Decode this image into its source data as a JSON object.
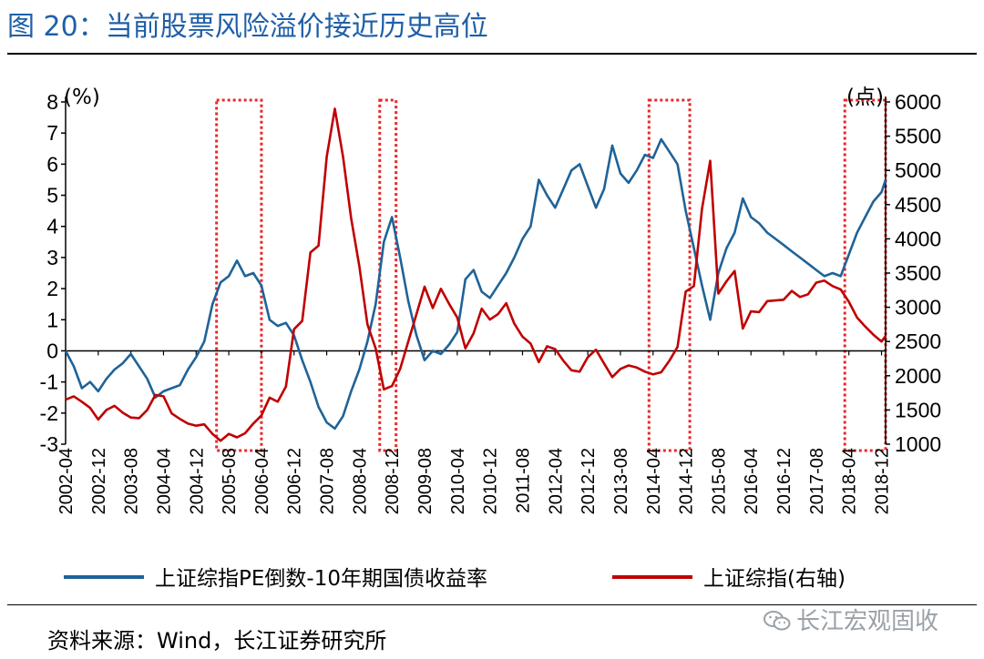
{
  "figure": {
    "title": "图 20：当前股票风险溢价接近历史高位",
    "source": "资料来源：Wind，长江证券研究所",
    "watermark": "长江宏观固收",
    "watermark_icon": "wechat-icon"
  },
  "chart_data": {
    "type": "line",
    "left_unit": "(%)",
    "right_unit": "(点)",
    "left_ylim": [
      -3,
      8
    ],
    "right_ylim": [
      1000,
      6000
    ],
    "left_ticks": [
      "8",
      "7",
      "6",
      "5",
      "4",
      "3",
      "2",
      "1",
      "0",
      "-1",
      "-2",
      "-3"
    ],
    "right_ticks": [
      "6000",
      "5500",
      "5000",
      "4500",
      "4000",
      "3500",
      "3000",
      "2500",
      "2000",
      "1500",
      "1000"
    ],
    "x_ticks": [
      "2002-04",
      "2002-12",
      "2003-08",
      "2004-04",
      "2004-12",
      "2005-08",
      "2006-04",
      "2006-12",
      "2007-08",
      "2008-04",
      "2008-12",
      "2009-08",
      "2010-04",
      "2010-12",
      "2011-08",
      "2012-04",
      "2012-12",
      "2013-08",
      "2014-04",
      "2014-12",
      "2015-08",
      "2016-04",
      "2016-12",
      "2017-08",
      "2018-04",
      "2018-12"
    ],
    "x_range": [
      "2002-04",
      "2019-01"
    ],
    "grid": false,
    "legend_position": "bottom",
    "colors": {
      "erp": "#1f6398",
      "index": "#c00000",
      "box": "#e8282b"
    },
    "series": [
      {
        "name": "上证综指PE倒数-10年期国债收益率",
        "axis": "left",
        "points": [
          [
            "2002-04",
            0.0
          ],
          [
            "2002-06",
            -0.5
          ],
          [
            "2002-08",
            -1.2
          ],
          [
            "2002-10",
            -1.0
          ],
          [
            "2002-12",
            -1.3
          ],
          [
            "2003-02",
            -0.9
          ],
          [
            "2003-04",
            -0.6
          ],
          [
            "2003-06",
            -0.4
          ],
          [
            "2003-08",
            -0.1
          ],
          [
            "2003-10",
            -0.5
          ],
          [
            "2003-12",
            -0.9
          ],
          [
            "2004-02",
            -1.5
          ],
          [
            "2004-04",
            -1.3
          ],
          [
            "2004-06",
            -1.2
          ],
          [
            "2004-08",
            -1.1
          ],
          [
            "2004-10",
            -0.6
          ],
          [
            "2004-12",
            -0.2
          ],
          [
            "2005-02",
            0.3
          ],
          [
            "2005-04",
            1.5
          ],
          [
            "2005-06",
            2.2
          ],
          [
            "2005-08",
            2.4
          ],
          [
            "2005-10",
            2.9
          ],
          [
            "2005-12",
            2.4
          ],
          [
            "2006-02",
            2.5
          ],
          [
            "2006-04",
            2.1
          ],
          [
            "2006-06",
            1.0
          ],
          [
            "2006-08",
            0.8
          ],
          [
            "2006-10",
            0.9
          ],
          [
            "2006-12",
            0.5
          ],
          [
            "2007-02",
            -0.3
          ],
          [
            "2007-04",
            -1.0
          ],
          [
            "2007-06",
            -1.8
          ],
          [
            "2007-08",
            -2.3
          ],
          [
            "2007-10",
            -2.5
          ],
          [
            "2007-12",
            -2.1
          ],
          [
            "2008-02",
            -1.3
          ],
          [
            "2008-04",
            -0.6
          ],
          [
            "2008-06",
            0.3
          ],
          [
            "2008-08",
            1.5
          ],
          [
            "2008-10",
            3.5
          ],
          [
            "2008-12",
            4.3
          ],
          [
            "2009-02",
            3.0
          ],
          [
            "2009-04",
            1.6
          ],
          [
            "2009-06",
            0.5
          ],
          [
            "2009-08",
            -0.3
          ],
          [
            "2009-10",
            0.0
          ],
          [
            "2009-12",
            -0.1
          ],
          [
            "2010-02",
            0.2
          ],
          [
            "2010-04",
            0.6
          ],
          [
            "2010-06",
            2.3
          ],
          [
            "2010-08",
            2.6
          ],
          [
            "2010-10",
            1.9
          ],
          [
            "2010-12",
            1.7
          ],
          [
            "2011-02",
            2.1
          ],
          [
            "2011-04",
            2.5
          ],
          [
            "2011-06",
            3.0
          ],
          [
            "2011-08",
            3.6
          ],
          [
            "2011-10",
            4.0
          ],
          [
            "2011-12",
            5.5
          ],
          [
            "2012-02",
            5.0
          ],
          [
            "2012-04",
            4.6
          ],
          [
            "2012-06",
            5.2
          ],
          [
            "2012-08",
            5.8
          ],
          [
            "2012-10",
            6.0
          ],
          [
            "2012-12",
            5.3
          ],
          [
            "2013-02",
            4.6
          ],
          [
            "2013-04",
            5.2
          ],
          [
            "2013-06",
            6.6
          ],
          [
            "2013-08",
            5.7
          ],
          [
            "2013-10",
            5.4
          ],
          [
            "2013-12",
            5.8
          ],
          [
            "2014-02",
            6.3
          ],
          [
            "2014-04",
            6.2
          ],
          [
            "2014-06",
            6.8
          ],
          [
            "2014-08",
            6.4
          ],
          [
            "2014-10",
            6.0
          ],
          [
            "2014-12",
            4.5
          ],
          [
            "2015-02",
            3.3
          ],
          [
            "2015-04",
            2.1
          ],
          [
            "2015-06",
            1.0
          ],
          [
            "2015-08",
            2.5
          ],
          [
            "2015-10",
            3.3
          ],
          [
            "2015-12",
            3.8
          ],
          [
            "2016-02",
            4.9
          ],
          [
            "2016-04",
            4.3
          ],
          [
            "2016-06",
            4.1
          ],
          [
            "2016-08",
            3.8
          ],
          [
            "2016-10",
            3.6
          ],
          [
            "2016-12",
            3.4
          ],
          [
            "2017-02",
            3.2
          ],
          [
            "2017-04",
            3.0
          ],
          [
            "2017-06",
            2.8
          ],
          [
            "2017-08",
            2.6
          ],
          [
            "2017-10",
            2.4
          ],
          [
            "2017-12",
            2.5
          ],
          [
            "2018-02",
            2.4
          ],
          [
            "2018-04",
            3.1
          ],
          [
            "2018-06",
            3.8
          ],
          [
            "2018-08",
            4.3
          ],
          [
            "2018-10",
            4.8
          ],
          [
            "2018-12",
            5.1
          ],
          [
            "2019-01",
            5.5
          ]
        ]
      },
      {
        "name": "上证综指(右轴)",
        "axis": "right",
        "points": [
          [
            "2002-04",
            1650
          ],
          [
            "2002-06",
            1700
          ],
          [
            "2002-08",
            1620
          ],
          [
            "2002-10",
            1530
          ],
          [
            "2002-12",
            1360
          ],
          [
            "2003-02",
            1500
          ],
          [
            "2003-04",
            1560
          ],
          [
            "2003-06",
            1460
          ],
          [
            "2003-08",
            1390
          ],
          [
            "2003-10",
            1380
          ],
          [
            "2003-12",
            1500
          ],
          [
            "2004-02",
            1720
          ],
          [
            "2004-04",
            1700
          ],
          [
            "2004-06",
            1450
          ],
          [
            "2004-08",
            1370
          ],
          [
            "2004-10",
            1300
          ],
          [
            "2004-12",
            1270
          ],
          [
            "2005-02",
            1290
          ],
          [
            "2005-04",
            1150
          ],
          [
            "2005-06",
            1050
          ],
          [
            "2005-08",
            1150
          ],
          [
            "2005-10",
            1100
          ],
          [
            "2005-12",
            1160
          ],
          [
            "2006-02",
            1300
          ],
          [
            "2006-04",
            1420
          ],
          [
            "2006-06",
            1680
          ],
          [
            "2006-08",
            1620
          ],
          [
            "2006-10",
            1840
          ],
          [
            "2006-12",
            2680
          ],
          [
            "2007-02",
            2800
          ],
          [
            "2007-04",
            3800
          ],
          [
            "2007-06",
            3900
          ],
          [
            "2007-08",
            5200
          ],
          [
            "2007-10",
            5900
          ],
          [
            "2007-12",
            5200
          ],
          [
            "2008-02",
            4300
          ],
          [
            "2008-04",
            3600
          ],
          [
            "2008-06",
            2750
          ],
          [
            "2008-08",
            2400
          ],
          [
            "2008-10",
            1800
          ],
          [
            "2008-12",
            1850
          ],
          [
            "2009-02",
            2100
          ],
          [
            "2009-04",
            2500
          ],
          [
            "2009-06",
            2900
          ],
          [
            "2009-08",
            3300
          ],
          [
            "2009-10",
            2990
          ],
          [
            "2009-12",
            3270
          ],
          [
            "2010-02",
            3050
          ],
          [
            "2010-04",
            2850
          ],
          [
            "2010-06",
            2400
          ],
          [
            "2010-08",
            2620
          ],
          [
            "2010-10",
            2980
          ],
          [
            "2010-12",
            2820
          ],
          [
            "2011-02",
            2900
          ],
          [
            "2011-04",
            3060
          ],
          [
            "2011-06",
            2760
          ],
          [
            "2011-08",
            2570
          ],
          [
            "2011-10",
            2470
          ],
          [
            "2011-12",
            2200
          ],
          [
            "2012-02",
            2430
          ],
          [
            "2012-04",
            2390
          ],
          [
            "2012-06",
            2220
          ],
          [
            "2012-08",
            2080
          ],
          [
            "2012-10",
            2060
          ],
          [
            "2012-12",
            2270
          ],
          [
            "2013-02",
            2380
          ],
          [
            "2013-04",
            2180
          ],
          [
            "2013-06",
            1980
          ],
          [
            "2013-08",
            2100
          ],
          [
            "2013-10",
            2150
          ],
          [
            "2013-12",
            2120
          ],
          [
            "2014-02",
            2060
          ],
          [
            "2014-04",
            2020
          ],
          [
            "2014-06",
            2050
          ],
          [
            "2014-08",
            2220
          ],
          [
            "2014-10",
            2420
          ],
          [
            "2014-12",
            3230
          ],
          [
            "2015-02",
            3310
          ],
          [
            "2015-04",
            4440
          ],
          [
            "2015-06",
            5140
          ],
          [
            "2015-08",
            3200
          ],
          [
            "2015-10",
            3380
          ],
          [
            "2015-12",
            3530
          ],
          [
            "2016-02",
            2690
          ],
          [
            "2016-04",
            2940
          ],
          [
            "2016-06",
            2930
          ],
          [
            "2016-08",
            3090
          ],
          [
            "2016-10",
            3100
          ],
          [
            "2016-12",
            3110
          ],
          [
            "2017-02",
            3240
          ],
          [
            "2017-04",
            3150
          ],
          [
            "2017-06",
            3190
          ],
          [
            "2017-08",
            3360
          ],
          [
            "2017-10",
            3390
          ],
          [
            "2017-12",
            3310
          ],
          [
            "2018-02",
            3260
          ],
          [
            "2018-04",
            3080
          ],
          [
            "2018-06",
            2850
          ],
          [
            "2018-08",
            2720
          ],
          [
            "2018-10",
            2600
          ],
          [
            "2018-12",
            2500
          ],
          [
            "2019-01",
            2580
          ]
        ]
      }
    ],
    "highlight_periods": [
      [
        "2005-05",
        "2006-04"
      ],
      [
        "2008-09",
        "2009-01"
      ],
      [
        "2014-03",
        "2015-01"
      ],
      [
        "2018-03",
        "2019-01"
      ]
    ]
  }
}
